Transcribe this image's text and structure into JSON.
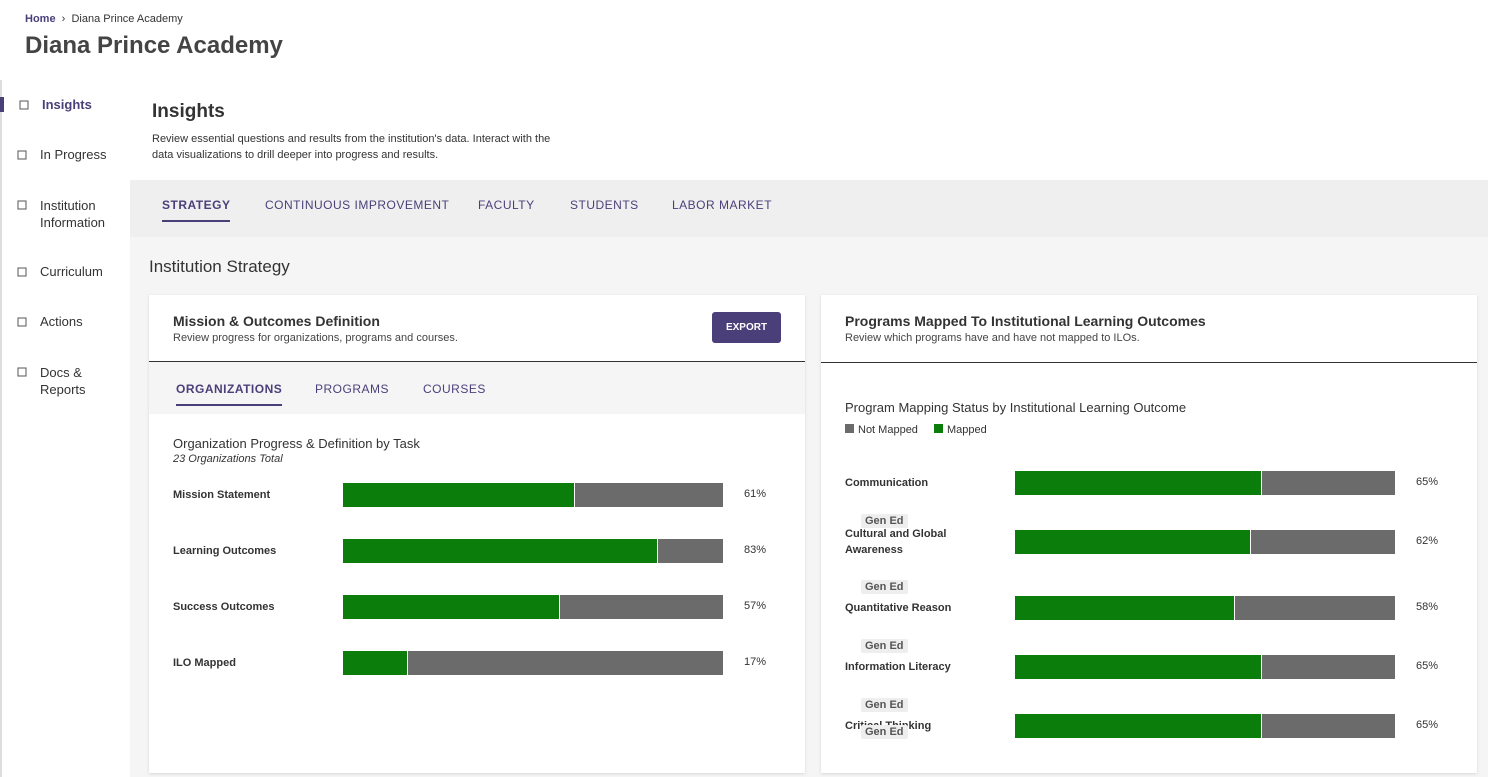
{
  "breadcrumb": {
    "home": "Home",
    "current": "Diana Prince Academy"
  },
  "header": {
    "title": "Diana Prince Academy"
  },
  "sidebar": {
    "items": [
      "Insights",
      "In Progress",
      "Institution Information",
      "Curriculum",
      "Actions",
      "Docs & Reports"
    ],
    "active": 0
  },
  "page": {
    "title": "Insights",
    "description": "Review essential questions and results from the institution's data. Interact with the data visualizations to drill deeper into progress and results."
  },
  "tabs": {
    "items": [
      "STRATEGY",
      "CONTINUOUS IMPROVEMENT",
      "FACULTY",
      "STUDENTS",
      "LABOR MARKET"
    ],
    "active": 0
  },
  "section_title": "Institution Strategy",
  "mission_card": {
    "title": "Mission & Outcomes Definition",
    "subtitle": "Review progress for organizations, programs and courses.",
    "export": "EXPORT",
    "tabs": {
      "items": [
        "ORGANIZATIONS",
        "PROGRAMS",
        "COURSES"
      ],
      "active": 0
    },
    "chart": {
      "type": "bar",
      "title": "Organization Progress & Definition by Task",
      "subtitle": "23 Organizations Total",
      "categories": [
        "Mission Statement",
        "Learning Outcomes",
        "Success Outcomes",
        "ILO Mapped"
      ],
      "values": [
        61,
        83,
        57,
        17
      ],
      "value_labels": [
        "61%",
        "83%",
        "57%",
        "17%"
      ],
      "color": "#0a7d0a",
      "remainder_color": "#6b6b6b",
      "xlim": [
        0,
        100
      ]
    }
  },
  "programs_card": {
    "title": "Programs Mapped To Institutional Learning Outcomes",
    "subtitle": "Review which programs have and have not mapped to ILOs.",
    "chart": {
      "type": "bar",
      "title": "Program Mapping Status by Institutional Learning Outcome",
      "legend": [
        {
          "name": "Not Mapped",
          "color": "#6b6b6b"
        },
        {
          "name": "Mapped",
          "color": "#0a7d0a"
        }
      ],
      "categories": [
        "Communication",
        "Cultural and Global Awareness",
        "Quantitative Reason",
        "Information Literacy",
        "Critical Thinking"
      ],
      "tags": [
        "Gen Ed",
        "Gen Ed",
        "Gen Ed",
        "Gen Ed",
        "Gen Ed"
      ],
      "values": [
        65,
        62,
        58,
        65,
        65
      ],
      "value_labels": [
        "65%",
        "62%",
        "58%",
        "65%",
        "65%"
      ],
      "xlim": [
        0,
        100
      ]
    }
  }
}
